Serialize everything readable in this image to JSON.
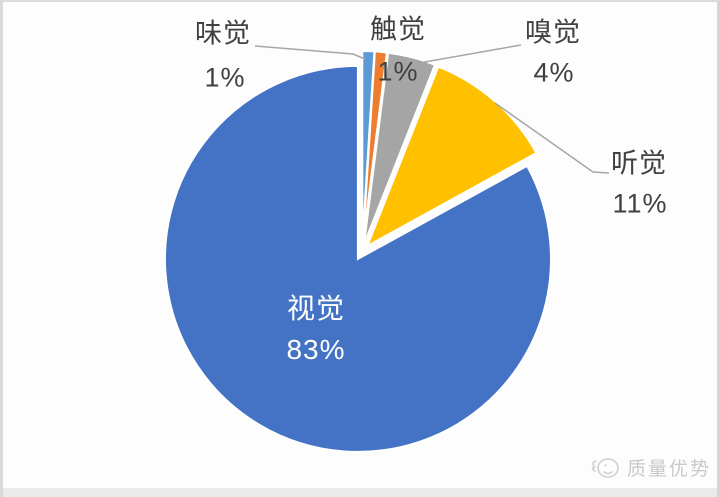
{
  "watermark": {
    "text": "质量优势",
    "icon": "mascot-face-icon"
  },
  "chart_data": {
    "type": "pie",
    "title": "",
    "unit": "%",
    "direction": "clockwise",
    "start_angle_deg": 0,
    "legend": "none",
    "grid": false,
    "label_color": "#404040",
    "inside_label_color": "#FFFFFF",
    "leader_line_color": "#A6A6A6",
    "background_color": "#FDFDFD",
    "slices": [
      {
        "key": "taste",
        "label": "味觉",
        "value": 1,
        "display": "1%",
        "color": "#5B9BD5",
        "label_position": "outside"
      },
      {
        "key": "touch",
        "label": "触觉",
        "value": 1,
        "display": "1%",
        "color": "#ED7D31",
        "label_position": "outside"
      },
      {
        "key": "smell",
        "label": "嗅觉",
        "value": 4,
        "display": "4%",
        "color": "#A5A5A5",
        "label_position": "outside"
      },
      {
        "key": "hearing",
        "label": "听觉",
        "value": 11,
        "display": "11%",
        "color": "#FFC000",
        "label_position": "outside"
      },
      {
        "key": "vision",
        "label": "视觉",
        "value": 83,
        "display": "83%",
        "color": "#4472C4",
        "label_position": "inside"
      }
    ]
  }
}
